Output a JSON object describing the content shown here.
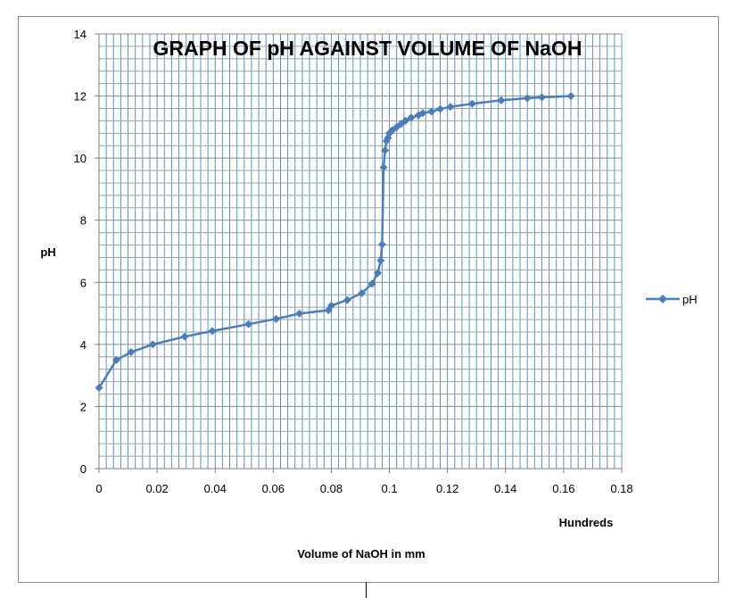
{
  "chart_data": {
    "type": "scatter",
    "title": "GRAPH OF pH AGAINST VOLUME OF NaOH",
    "xlabel": "Volume of NaOH in mm",
    "x_display_unit": "Hundreds",
    "ylabel": "pH",
    "xlim": [
      0,
      0.18
    ],
    "ylim": [
      0,
      14
    ],
    "x_ticks": [
      "0",
      "0.02",
      "0.04",
      "0.06",
      "0.08",
      "0.1",
      "0.12",
      "0.14",
      "0.16",
      "0.18"
    ],
    "y_ticks": [
      "0",
      "2",
      "4",
      "6",
      "8",
      "10",
      "12",
      "14"
    ],
    "grid": true,
    "legend_position": "right",
    "series": [
      {
        "name": "pH",
        "color": "#4a7ebb",
        "marker": "diamond",
        "x": [
          0.0,
          0.006,
          0.011,
          0.0185,
          0.0295,
          0.039,
          0.0515,
          0.061,
          0.069,
          0.079,
          0.08,
          0.0855,
          0.0905,
          0.094,
          0.096,
          0.097,
          0.0975,
          0.098,
          0.0985,
          0.099,
          0.0995,
          0.1,
          0.101,
          0.1025,
          0.104,
          0.1055,
          0.1075,
          0.11,
          0.1115,
          0.1145,
          0.1175,
          0.121,
          0.1285,
          0.1385,
          0.1475,
          0.1525,
          0.1625
        ],
        "y": [
          2.6,
          3.5,
          3.75,
          4.0,
          4.25,
          4.43,
          4.65,
          4.82,
          4.99,
          5.1,
          5.25,
          5.43,
          5.65,
          5.95,
          6.3,
          6.7,
          7.22,
          9.7,
          10.25,
          10.55,
          10.65,
          10.8,
          10.9,
          11.0,
          11.1,
          11.2,
          11.3,
          11.38,
          11.45,
          11.5,
          11.58,
          11.65,
          11.75,
          11.86,
          11.93,
          11.96,
          12.0
        ]
      }
    ]
  }
}
